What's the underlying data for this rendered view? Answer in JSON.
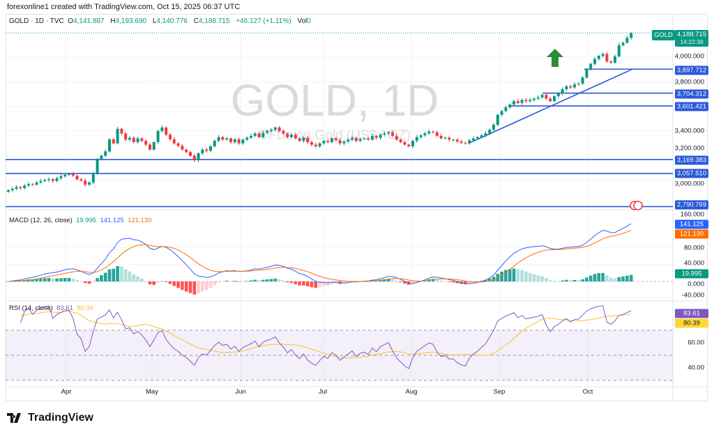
{
  "header": {
    "credit": "forexonline1 created with TradingView.com, Oct 15, 2025 06:37 UTC"
  },
  "legend": {
    "symbol": "GOLD · 1D · TVC",
    "o_label": "O",
    "o": "4,141.887",
    "h_label": "H",
    "h": "4,193.690",
    "l_label": "L",
    "l": "4,140.776",
    "c_label": "C",
    "c": "4,188.715",
    "change": "+46.127 (+1.11%)",
    "vol_label": "Vol",
    "vol": "0"
  },
  "watermark": {
    "title": "GOLD, 1D",
    "subtitle": "CFDs on Gold (US$ / OZ)"
  },
  "price_tag": {
    "symbol": "GOLD",
    "price": "4,188.715",
    "countdown": "14:22:38"
  },
  "colors": {
    "up": "#089981",
    "down": "#f23645",
    "level": "#2a59d8",
    "macd": "#2962ff",
    "signal": "#ff6d00",
    "rsi": "#7e57c2",
    "rsi_ma": "#fbc02d",
    "arrow": "#2e8b37"
  },
  "chart_data": {
    "type": "candlestick",
    "price_axis_ticks": [
      "4,000.000",
      "3,800.000",
      "3,400.000",
      "3,200.000",
      "3,000.000"
    ],
    "time_labels": [
      "Apr",
      "May",
      "Jun",
      "Jul",
      "Aug",
      "Sep",
      "Oct"
    ],
    "first_open": 2910,
    "closes": [
      2923,
      2935,
      2948,
      2940,
      2960,
      2972,
      2968,
      2985,
      2996,
      3005,
      3012,
      2998,
      3020,
      3035,
      3048,
      3052,
      3040,
      3010,
      3000,
      2968,
      2985,
      3060,
      3175,
      3200,
      3235,
      3333,
      3300,
      3417,
      3380,
      3330,
      3345,
      3310,
      3340,
      3320,
      3290,
      3250,
      3310,
      3400,
      3428,
      3370,
      3333,
      3300,
      3280,
      3250,
      3230,
      3200,
      3164,
      3220,
      3250,
      3240,
      3276,
      3320,
      3350,
      3330,
      3340,
      3310,
      3333,
      3300,
      3330,
      3345,
      3360,
      3380,
      3350,
      3385,
      3400,
      3410,
      3428,
      3400,
      3380,
      3350,
      3370,
      3340,
      3320,
      3345,
      3310,
      3290,
      3276,
      3300,
      3320,
      3310,
      3340,
      3325,
      3300,
      3315,
      3330,
      3345,
      3320,
      3335,
      3340,
      3330,
      3360,
      3345,
      3370,
      3380,
      3390,
      3360,
      3330,
      3310,
      3290,
      3276,
      3320,
      3350,
      3365,
      3380,
      3395,
      3390,
      3360,
      3340,
      3345,
      3330,
      3330,
      3315,
      3305,
      3300,
      3325,
      3340,
      3350,
      3365,
      3380,
      3410,
      3450,
      3530,
      3560,
      3590,
      3613,
      3640,
      3625,
      3650,
      3640,
      3650,
      3660,
      3670,
      3690,
      3660,
      3640,
      3680,
      3700,
      3736,
      3760,
      3750,
      3775,
      3781,
      3830,
      3893,
      3940,
      3980,
      4005,
      4020,
      3960,
      3950,
      4000,
      4090,
      4110,
      4150,
      4188.715
    ],
    "levels": [
      "3,897.712",
      "3,704.312",
      "3,601.421",
      "3,169.383",
      "3,057.510",
      "2,790.769"
    ],
    "level_values": [
      3897.712,
      3704.312,
      3601.421,
      3169.383,
      3057.51,
      2790.769
    ],
    "trendline": {
      "from_price": 3300,
      "to_price": 3900
    },
    "macd": {
      "label": "MACD (12, 26, close)",
      "hist": "19.995",
      "macd": "141.125",
      "signal": "121.130",
      "ticks": [
        "160.000",
        "80.000",
        "40.000",
        "0.000",
        "-40.000"
      ]
    },
    "rsi": {
      "label": "RSI (14, close)",
      "rsi": "83.61",
      "ma": "80.39",
      "ticks": [
        "60.00",
        "40.00"
      ],
      "bands": [
        70,
        50,
        30
      ]
    }
  },
  "footer": {
    "brand": "TradingView"
  }
}
